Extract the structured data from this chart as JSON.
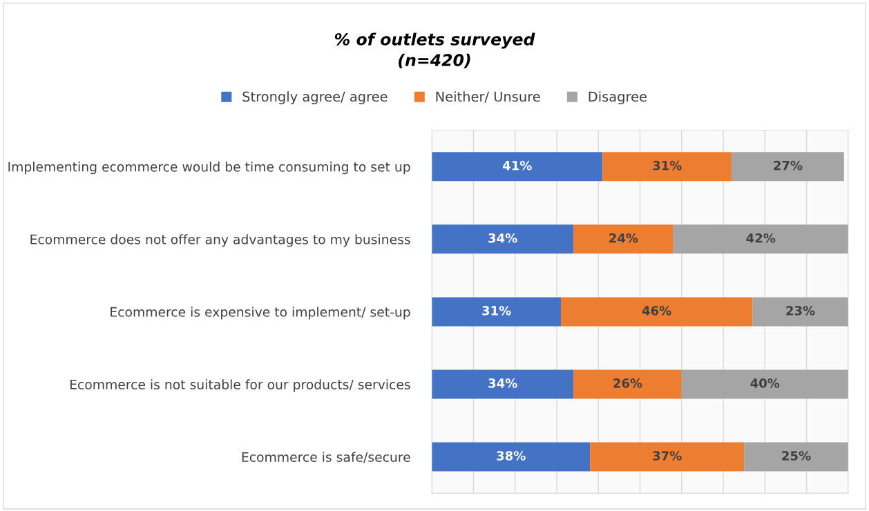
{
  "chart_data": {
    "type": "bar",
    "orientation": "horizontal",
    "stacked": true,
    "title": "% of outlets surveyed\n(n=420)",
    "categories": [
      "Implementing ecommerce would be time consuming to set up",
      "Ecommerce does not offer any advantages to my business",
      "Ecommerce is expensive to implement/ set-up",
      "Ecommerce is not suitable for our products/ services",
      "Ecommerce is safe/secure"
    ],
    "series": [
      {
        "name": "Strongly agree/ agree",
        "color": "#4472c4",
        "values": [
          41,
          34,
          31,
          34,
          38
        ],
        "value_labels": [
          "41%",
          "34%",
          "31%",
          "34%",
          "38%"
        ]
      },
      {
        "name": "Neither/ Unsure",
        "color": "#ed7d31",
        "values": [
          31,
          24,
          46,
          26,
          37
        ],
        "value_labels": [
          "31%",
          "24%",
          "46%",
          "26%",
          "37%"
        ]
      },
      {
        "name": "Disagree",
        "color": "#a5a5a5",
        "values": [
          27,
          42,
          23,
          40,
          25
        ],
        "value_labels": [
          "27%",
          "42%",
          "23%",
          "40%",
          "25%"
        ]
      }
    ],
    "xlim": [
      0,
      100
    ],
    "xticks": [
      {
        "value": 0,
        "label": null
      },
      {
        "value": 10,
        "label": null
      },
      {
        "value": 20,
        "label": null
      },
      {
        "value": 30,
        "label": null
      },
      {
        "value": 40,
        "label": null
      },
      {
        "value": 50,
        "label": null
      },
      {
        "value": 60,
        "label": null
      },
      {
        "value": 70,
        "label": null
      },
      {
        "value": 80,
        "label": null
      },
      {
        "value": 90,
        "label": null
      },
      {
        "value": 100,
        "label": null
      }
    ],
    "tick_labels": "y",
    "grid": "x",
    "legend": "top"
  }
}
